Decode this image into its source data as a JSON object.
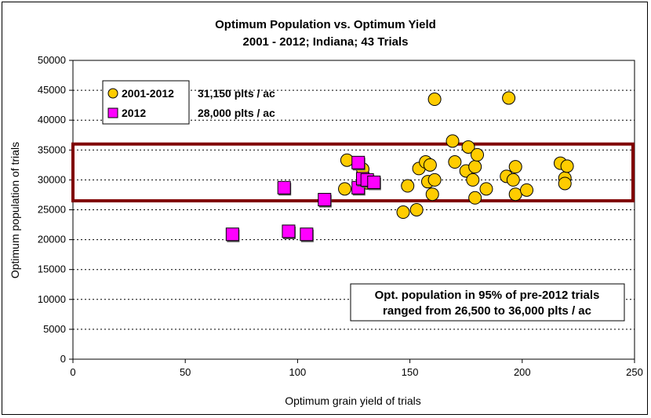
{
  "chart_data": {
    "type": "scatter",
    "title": "Optimum Population vs. Optimum Yield",
    "subtitle": "2001 - 2012; Indiana; 43 Trials",
    "xlabel": "Optimum grain yield of trials",
    "ylabel": "Optimum population of trials",
    "xlim": [
      0,
      250
    ],
    "ylim": [
      0,
      50000
    ],
    "x_ticks": [
      0,
      50,
      100,
      150,
      200,
      250
    ],
    "y_ticks": [
      0,
      5000,
      10000,
      15000,
      20000,
      25000,
      30000,
      35000,
      40000,
      45000,
      50000
    ],
    "grid": "horizontal dotted",
    "legend_position": "top-left",
    "series": [
      {
        "name": "2001-2012",
        "legend_value": "31,150 plts / ac",
        "marker": "circle",
        "color": "#FFCC00",
        "points": [
          [
            122,
            33300
          ],
          [
            121,
            28500
          ],
          [
            129,
            31800
          ],
          [
            131,
            29500
          ],
          [
            147,
            24600
          ],
          [
            149,
            29000
          ],
          [
            153,
            25000
          ],
          [
            154,
            31900
          ],
          [
            157,
            33000
          ],
          [
            158,
            29700
          ],
          [
            159,
            32500
          ],
          [
            160,
            27600
          ],
          [
            161,
            30000
          ],
          [
            161,
            43500
          ],
          [
            169,
            36500
          ],
          [
            170,
            33000
          ],
          [
            175,
            31500
          ],
          [
            176,
            35500
          ],
          [
            178,
            30000
          ],
          [
            179,
            27000
          ],
          [
            179,
            32200
          ],
          [
            180,
            34200
          ],
          [
            184,
            28500
          ],
          [
            193,
            30600
          ],
          [
            194,
            43700
          ],
          [
            196,
            30000
          ],
          [
            197,
            32200
          ],
          [
            197,
            27600
          ],
          [
            202,
            28300
          ],
          [
            217,
            32800
          ],
          [
            219,
            30300
          ],
          [
            219,
            29400
          ],
          [
            220,
            32300
          ]
        ]
      },
      {
        "name": "2012",
        "legend_value": "28,000 plts / ac",
        "marker": "square",
        "color": "#FF00FF",
        "points": [
          [
            71,
            20900
          ],
          [
            94,
            28700
          ],
          [
            96,
            21400
          ],
          [
            104,
            20900
          ],
          [
            112,
            26700
          ],
          [
            127,
            28700
          ],
          [
            127,
            32900
          ],
          [
            129,
            30200
          ],
          [
            131,
            30000
          ],
          [
            134,
            29600
          ]
        ]
      }
    ],
    "highlight_band": {
      "y_from": 26500,
      "y_to": 36000,
      "color": "#800000"
    },
    "annotation": {
      "line1": "Opt. population in 95% of pre-2012 trials",
      "line2": "ranged from 26,500 to 36,000 plts / ac"
    }
  }
}
